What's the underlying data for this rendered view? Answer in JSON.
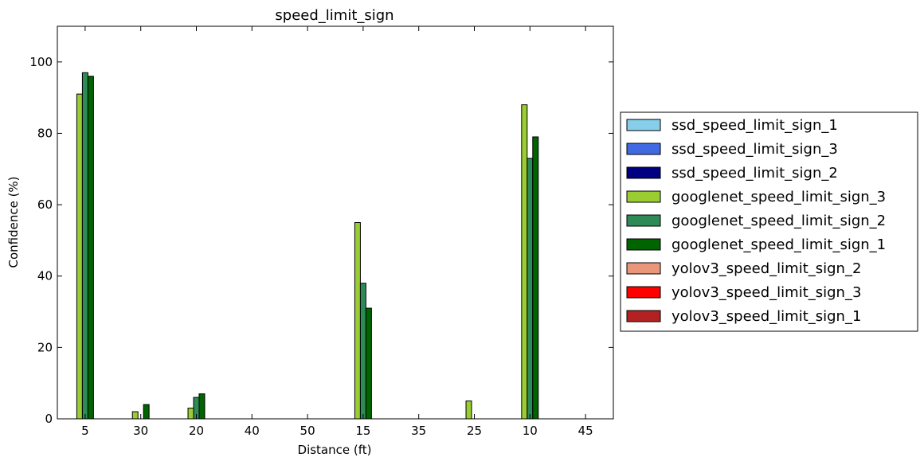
{
  "chart_data": {
    "type": "bar",
    "title": "speed_limit_sign",
    "xlabel": "Distance (ft)",
    "ylabel": "Confidence (%)",
    "ylim": [
      0,
      110
    ],
    "yticks": [
      0,
      20,
      40,
      60,
      80,
      100
    ],
    "categories": [
      "5",
      "30",
      "20",
      "40",
      "50",
      "15",
      "35",
      "25",
      "10",
      "45"
    ],
    "grid": false,
    "legend_position": "right, outside plot",
    "series": [
      {
        "name": "ssd_speed_limit_sign_1",
        "color": "#87ceeb",
        "values": [
          0,
          0,
          0,
          0,
          0,
          0,
          0,
          0,
          0,
          0
        ]
      },
      {
        "name": "ssd_speed_limit_sign_3",
        "color": "#4169e1",
        "values": [
          0,
          0,
          0,
          0,
          0,
          0,
          0,
          0,
          0,
          0
        ]
      },
      {
        "name": "ssd_speed_limit_sign_2",
        "color": "#000080",
        "values": [
          0,
          0,
          0,
          0,
          0,
          0,
          0,
          0,
          0,
          0
        ]
      },
      {
        "name": "googlenet_speed_limit_sign_3",
        "color": "#9acd32",
        "values": [
          91,
          2,
          3,
          0,
          0,
          55,
          0,
          5,
          88,
          0
        ]
      },
      {
        "name": "googlenet_speed_limit_sign_2",
        "color": "#2e8b57",
        "values": [
          97,
          0,
          6,
          0,
          0,
          38,
          0,
          0,
          73,
          0
        ]
      },
      {
        "name": "googlenet_speed_limit_sign_1",
        "color": "#006400",
        "values": [
          96,
          4,
          7,
          0,
          0,
          31,
          0,
          0,
          79,
          0
        ]
      },
      {
        "name": "yolov3_speed_limit_sign_2",
        "color": "#e9967a",
        "values": [
          0,
          0,
          0,
          0,
          0,
          0,
          0,
          0,
          0,
          0
        ]
      },
      {
        "name": "yolov3_speed_limit_sign_3",
        "color": "#ff0000",
        "values": [
          0,
          0,
          0,
          0,
          0,
          0,
          0,
          0,
          0,
          0
        ]
      },
      {
        "name": "yolov3_speed_limit_sign_1",
        "color": "#b22222",
        "values": [
          0,
          0,
          0,
          0,
          0,
          0,
          0,
          0,
          0,
          0
        ]
      }
    ]
  }
}
